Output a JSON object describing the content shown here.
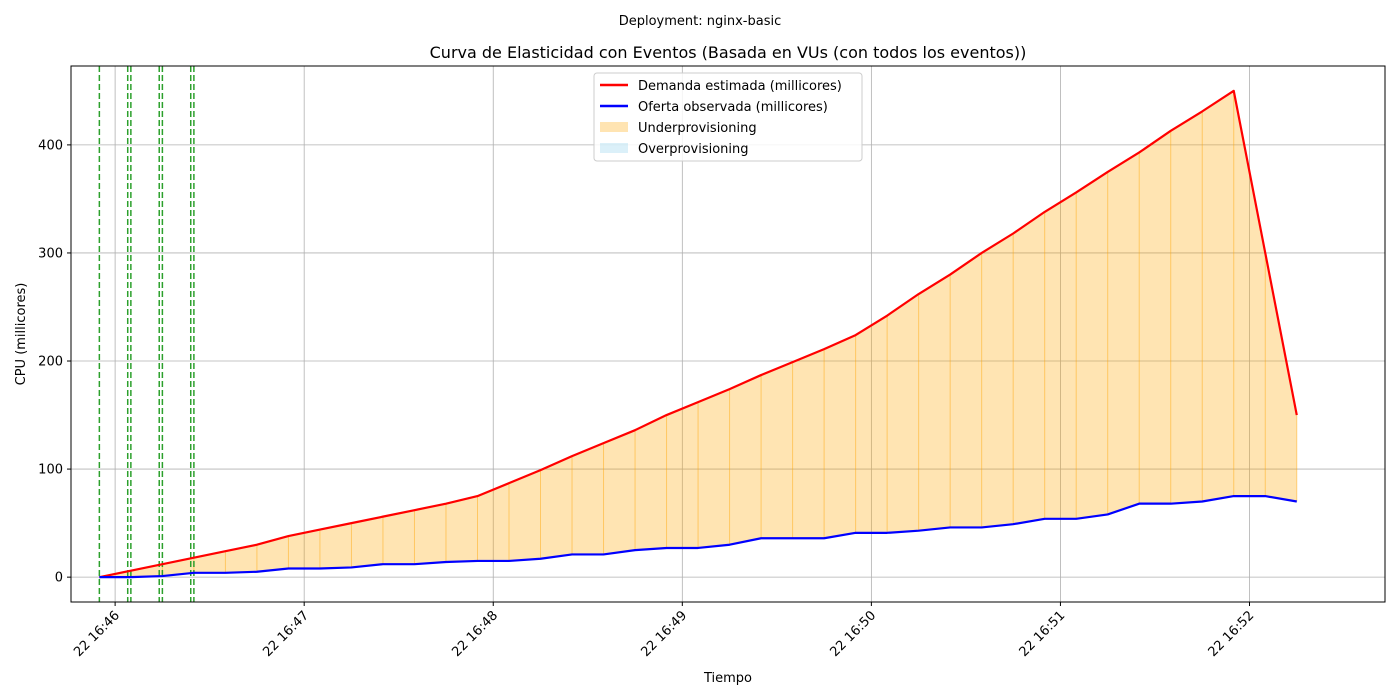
{
  "chart_data": {
    "type": "line",
    "suptitle": "Deployment: nginx-basic",
    "title": "Curva de Elasticidad con Eventos (Basada en VUs (con todos los eventos))",
    "xlabel": "Tiempo",
    "ylabel": "CPU (millicores)",
    "xlim": [
      "22 16:45:46",
      "22 16:52:43"
    ],
    "ylim": [
      -23,
      473
    ],
    "x_ticks": [
      "22 16:46",
      "22 16:47",
      "22 16:48",
      "22 16:49",
      "22 16:50",
      "22 16:51",
      "22 16:52"
    ],
    "y_ticks": [
      0,
      100,
      200,
      300,
      400
    ],
    "grid": true,
    "legend_position": "top-center",
    "x": [
      "22 16:45:55",
      "22 16:46:05",
      "22 16:46:15",
      "22 16:46:25",
      "22 16:46:35",
      "22 16:46:45",
      "22 16:46:55",
      "22 16:47:05",
      "22 16:47:15",
      "22 16:47:25",
      "22 16:47:35",
      "22 16:47:45",
      "22 16:47:55",
      "22 16:48:05",
      "22 16:48:15",
      "22 16:48:25",
      "22 16:48:35",
      "22 16:48:45",
      "22 16:48:55",
      "22 16:49:05",
      "22 16:49:15",
      "22 16:49:25",
      "22 16:49:35",
      "22 16:49:45",
      "22 16:49:55",
      "22 16:50:05",
      "22 16:50:15",
      "22 16:50:25",
      "22 16:50:35",
      "22 16:50:45",
      "22 16:50:55",
      "22 16:51:05",
      "22 16:51:15",
      "22 16:51:25",
      "22 16:51:35",
      "22 16:51:45",
      "22 16:51:55",
      "22 16:52:05",
      "22 16:52:15"
    ],
    "series": [
      {
        "name": "Demanda estimada (millicores)",
        "color": "#ff0000",
        "values": [
          0,
          6,
          12,
          18,
          24,
          30,
          38,
          44,
          50,
          56,
          62,
          68,
          75,
          87,
          99,
          112,
          124,
          136,
          150,
          162,
          174,
          187,
          199,
          211,
          224,
          242,
          262,
          280,
          300,
          318,
          338,
          356,
          375,
          393,
          413,
          431,
          450,
          300,
          150
        ]
      },
      {
        "name": "Oferta observada (millicores)",
        "color": "#0000ff",
        "values": [
          0,
          0,
          1,
          4,
          4,
          5,
          8,
          8,
          9,
          12,
          12,
          14,
          15,
          15,
          17,
          21,
          21,
          25,
          27,
          27,
          30,
          36,
          36,
          36,
          41,
          41,
          43,
          46,
          46,
          49,
          54,
          54,
          58,
          68,
          68,
          70,
          75,
          75,
          70
        ]
      }
    ],
    "fills": [
      {
        "name": "Underprovisioning",
        "color": "#ffa500"
      },
      {
        "name": "Overprovisioning",
        "color": "#87ceeb"
      }
    ],
    "event_lines": [
      "22 16:45:55",
      "22 16:46:04",
      "22 16:46:05",
      "22 16:46:14",
      "22 16:46:15",
      "22 16:46:24",
      "22 16:46:25"
    ],
    "event_color": "#2ca02c"
  }
}
